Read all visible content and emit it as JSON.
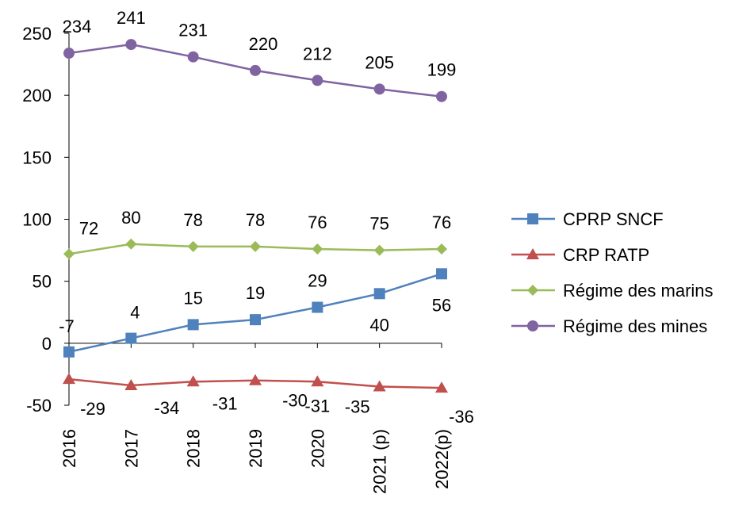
{
  "chart_data": {
    "type": "line",
    "title": "",
    "xlabel": "",
    "ylabel": "",
    "categories": [
      "2016",
      "2017",
      "2018",
      "2019",
      "2020",
      "2021 (p)",
      "2022(p)"
    ],
    "ylim": [
      -50,
      250
    ],
    "yticks": [
      "-50",
      "0",
      "50",
      "100",
      "150",
      "200",
      "250"
    ],
    "grid": false,
    "legend_position": "right",
    "series": [
      {
        "name": "CPRP SNCF",
        "values": [
          -7,
          4,
          15,
          19,
          29,
          40,
          56
        ],
        "labels": [
          "-7",
          "4",
          "15",
          "19",
          "29",
          "40",
          "56"
        ],
        "color": "#4F81BD",
        "marker": "square"
      },
      {
        "name": "CRP RATP",
        "values": [
          -29,
          -34,
          -31,
          -30,
          -31,
          -35,
          -36
        ],
        "labels": [
          "-29",
          "-34",
          "-31",
          "-30",
          "-31",
          "-35",
          "-36"
        ],
        "color": "#C0504D",
        "marker": "triangle"
      },
      {
        "name": "Régime des marins",
        "values": [
          72,
          80,
          78,
          78,
          76,
          75,
          76
        ],
        "labels": [
          "72",
          "80",
          "78",
          "78",
          "76",
          "75",
          "76"
        ],
        "color": "#9BBB59",
        "marker": "diamond"
      },
      {
        "name": "Régime des mines",
        "values": [
          234,
          241,
          231,
          220,
          212,
          205,
          199
        ],
        "labels": [
          "234",
          "241",
          "231",
          "220",
          "212",
          "205",
          "199"
        ],
        "color": "#8064A2",
        "marker": "circle"
      }
    ]
  }
}
